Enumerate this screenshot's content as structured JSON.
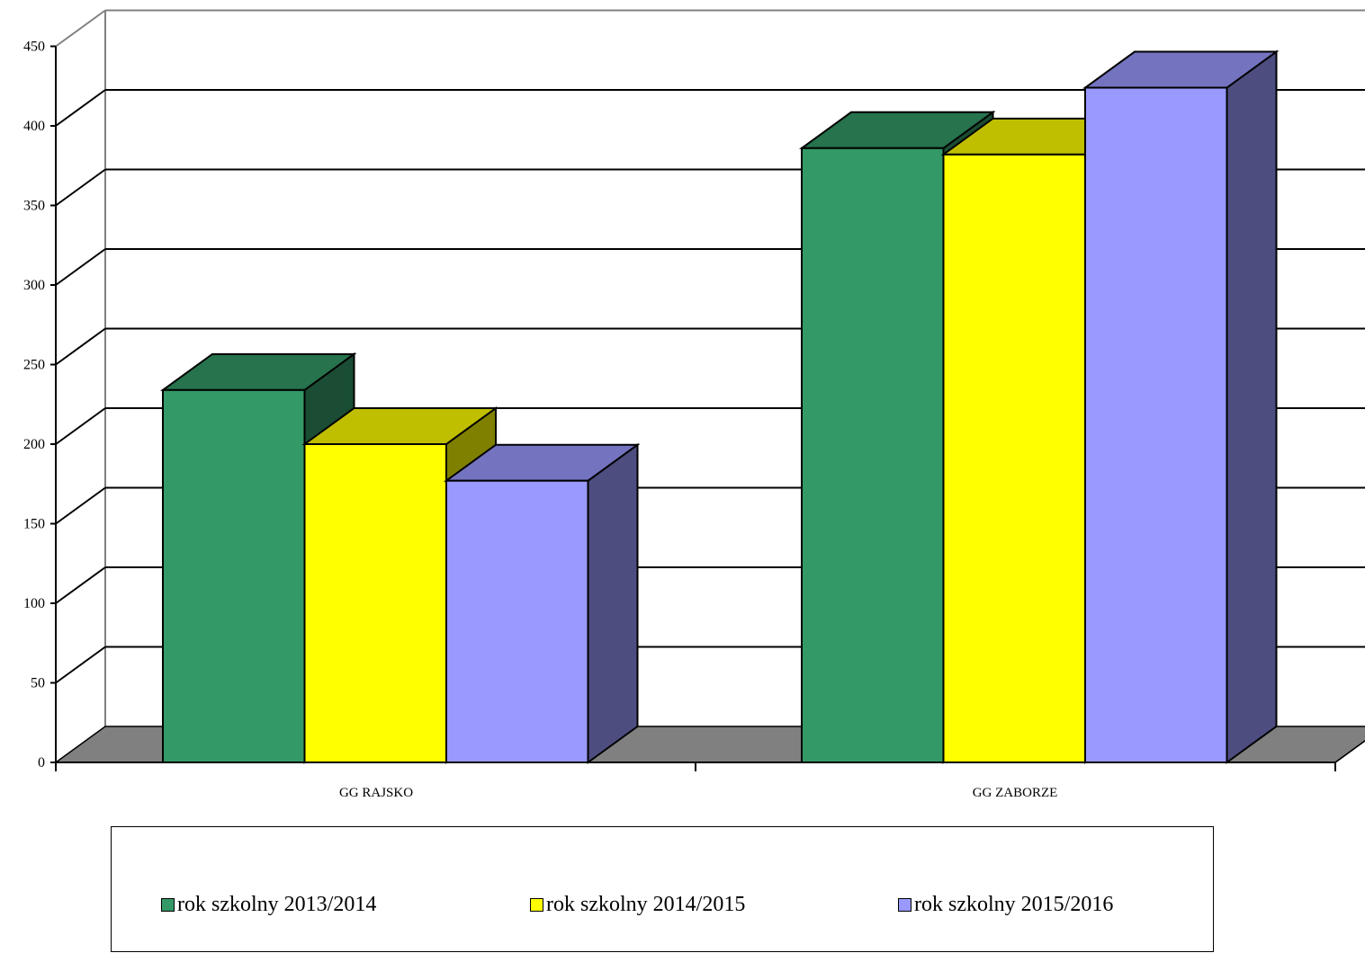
{
  "chart_data": {
    "type": "bar",
    "categories": [
      "GG RAJSKO",
      "GG ZABORZE"
    ],
    "series": [
      {
        "name": "rok szkolny 2013/2014",
        "color": "#339966",
        "values": [
          234,
          386
        ]
      },
      {
        "name": "rok szkolny 2014/2015",
        "color": "#ffff00",
        "values": [
          200,
          382
        ]
      },
      {
        "name": "rok szkolny 2015/2016",
        "color": "#9999ff",
        "values": [
          177,
          424
        ]
      }
    ],
    "yticks": [
      "0",
      "50",
      "100",
      "150",
      "200",
      "250",
      "300",
      "350",
      "400",
      "450"
    ],
    "ylim": [
      0,
      450
    ],
    "grid": true,
    "legend_position": "bottom",
    "style": "3d-clustered-column"
  }
}
